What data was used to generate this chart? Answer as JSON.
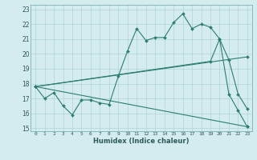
{
  "title": "",
  "xlabel": "Humidex (Indice chaleur)",
  "ylabel": "",
  "xlim": [
    -0.5,
    23.5
  ],
  "ylim": [
    14.8,
    23.3
  ],
  "xticks": [
    0,
    1,
    2,
    3,
    4,
    5,
    6,
    7,
    8,
    9,
    10,
    11,
    12,
    13,
    14,
    15,
    16,
    17,
    18,
    19,
    20,
    21,
    22,
    23
  ],
  "yticks": [
    15,
    16,
    17,
    18,
    19,
    20,
    21,
    22,
    23
  ],
  "background_color": "#d4ecee",
  "line_color": "#2d7d72",
  "grid_color": "#b0d4d8",
  "lines": [
    {
      "x": [
        0,
        1,
        2,
        3,
        4,
        5,
        6,
        7,
        8,
        9,
        10,
        11,
        12,
        13,
        14,
        15,
        16,
        17,
        18,
        19,
        20,
        21,
        22,
        23
      ],
      "y": [
        17.8,
        17.0,
        17.4,
        16.5,
        15.9,
        16.9,
        16.9,
        16.7,
        16.6,
        18.5,
        20.2,
        21.7,
        20.9,
        21.1,
        21.1,
        22.1,
        22.7,
        21.7,
        22.0,
        21.8,
        21.0,
        19.6,
        17.3,
        16.3
      ]
    },
    {
      "x": [
        0,
        19,
        20,
        21,
        22,
        23
      ],
      "y": [
        17.8,
        19.5,
        21.0,
        17.3,
        16.2,
        15.1
      ]
    },
    {
      "x": [
        0,
        23
      ],
      "y": [
        17.8,
        19.8
      ]
    },
    {
      "x": [
        0,
        23
      ],
      "y": [
        17.8,
        15.1
      ]
    }
  ]
}
